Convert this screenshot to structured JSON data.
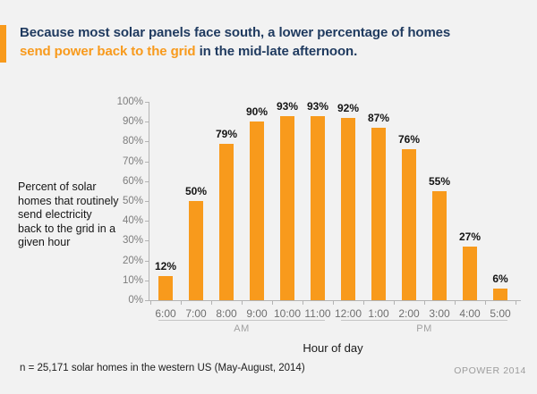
{
  "header": {
    "line1": "Because most solar panels face south, a lower percentage of homes",
    "line2_highlight": "send power back to the grid",
    "line2_rest": " in the mid-late afternoon.",
    "accent_color": "#F89A1C",
    "title_color": "#1F3A5F"
  },
  "annotation": {
    "lines": [
      "Percent of solar",
      "homes that routinely",
      "send electricity",
      "back to the grid in a",
      "given hour"
    ]
  },
  "chart_data": {
    "type": "bar",
    "title": "Percent of solar homes that routinely send electricity back to the grid in a given hour",
    "categories": [
      "6:00",
      "7:00",
      "8:00",
      "9:00",
      "10:00",
      "11:00",
      "12:00",
      "1:00",
      "2:00",
      "3:00",
      "4:00",
      "5:00"
    ],
    "values": [
      12,
      50,
      79,
      90,
      93,
      93,
      92,
      87,
      76,
      55,
      27,
      6
    ],
    "value_labels": [
      "12%",
      "50%",
      "79%",
      "90%",
      "93%",
      "93%",
      "92%",
      "87%",
      "76%",
      "55%",
      "27%",
      "6%"
    ],
    "y_tick_labels": [
      "0%",
      "10%",
      "20%",
      "30%",
      "40%",
      "50%",
      "60%",
      "70%",
      "80%",
      "90%",
      "100%"
    ],
    "ylim": [
      0,
      100
    ],
    "xlabel": "Hour of day",
    "ylabel": "",
    "grid": "off",
    "legend": "none",
    "bar_color": "#F89A1C",
    "groups": [
      {
        "label": "AM",
        "start_index": 0,
        "end_index": 5
      },
      {
        "label": "PM",
        "start_index": 6,
        "end_index": 11
      }
    ]
  },
  "footer": {
    "note": "n = 25,171 solar homes in the western US (May-August, 2014)",
    "brand": "OPOWER 2014"
  }
}
